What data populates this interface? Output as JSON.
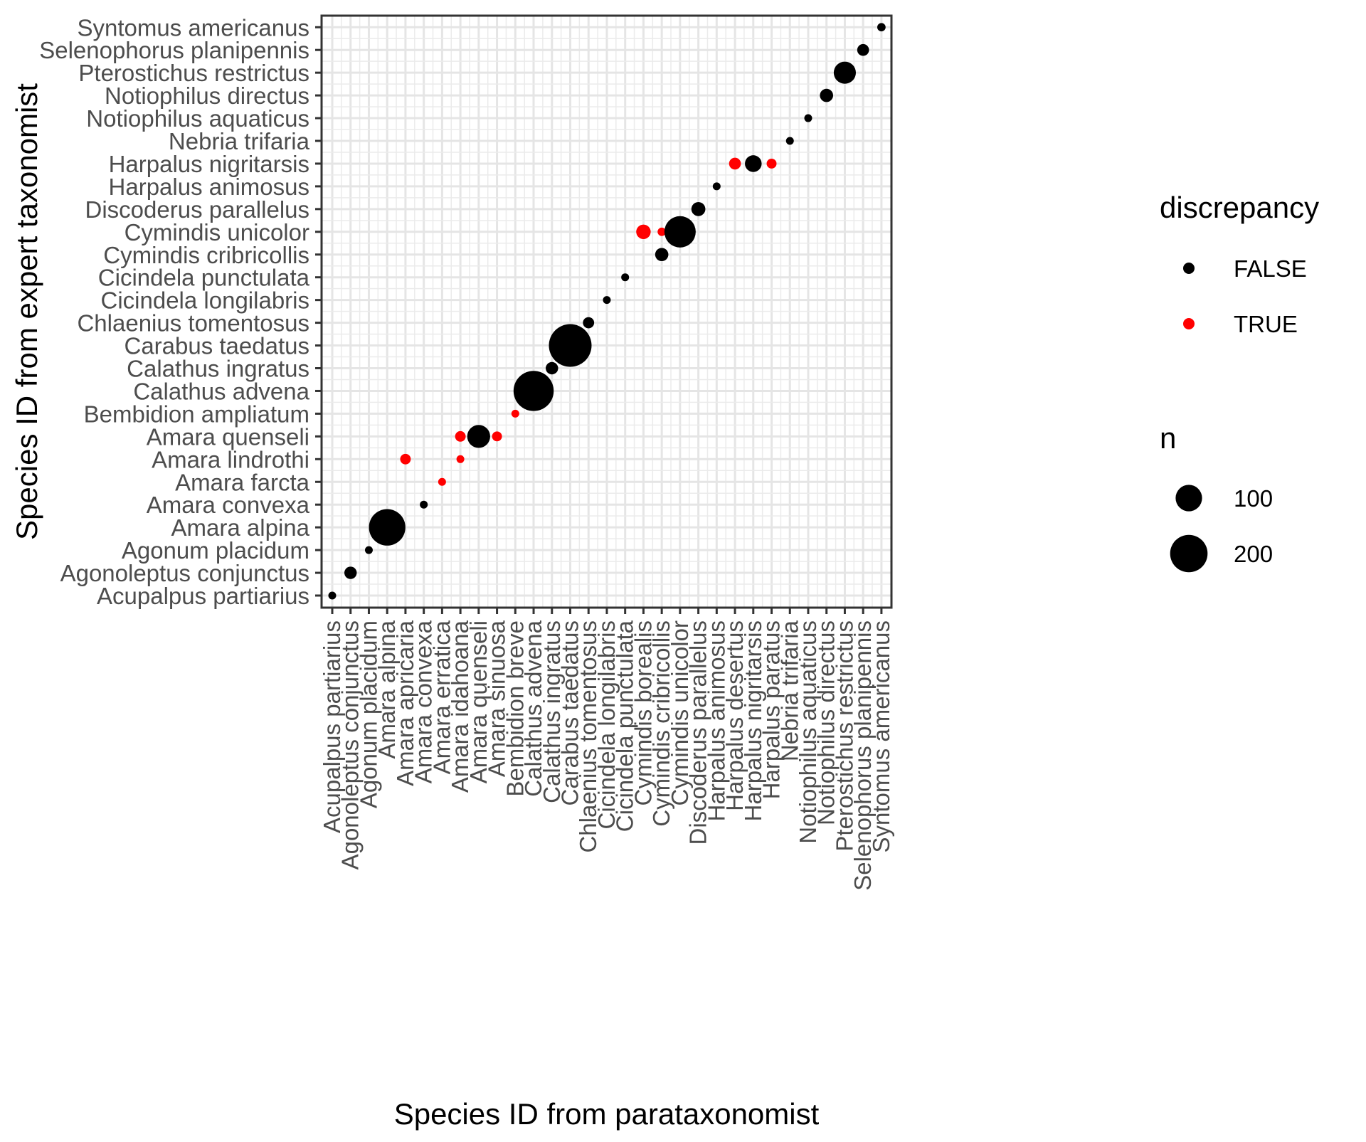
{
  "chart_data": {
    "type": "scatter",
    "xlabel": "Species ID from parataxonomist",
    "ylabel": "Species ID from expert taxonomist",
    "x_categories": [
      "Acupalpus partiarius",
      "Agonoleptus conjunctus",
      "Agonum placidum",
      "Amara alpina",
      "Amara apricaria",
      "Amara convexa",
      "Amara erratica",
      "Amara idahoana",
      "Amara quenseli",
      "Amara sinuosa",
      "Bembidion breve",
      "Calathus advena",
      "Calathus ingratus",
      "Carabus taedatus",
      "Chlaenius tomentosus",
      "Cicindela longilabris",
      "Cicindela punctulata",
      "Cymindis borealis",
      "Cymindis cribricollis",
      "Cymindis unicolor",
      "Discoderus parallelus",
      "Harpalus animosus",
      "Harpalus desertus",
      "Harpalus nigritarsis",
      "Harpalus paratus",
      "Nebria trifaria",
      "Notiophilus aquaticus",
      "Notiophilus directus",
      "Pterostichus restrictus",
      "Selenophorus planipennis",
      "Syntomus americanus"
    ],
    "y_categories": [
      "Acupalpus partiarius",
      "Agonoleptus conjunctus",
      "Agonum placidum",
      "Amara alpina",
      "Amara convexa",
      "Amara farcta",
      "Amara lindrothi",
      "Amara quenseli",
      "Bembidion ampliatum",
      "Calathus advena",
      "Calathus ingratus",
      "Carabus taedatus",
      "Chlaenius tomentosus",
      "Cicindela longilabris",
      "Cicindela punctulata",
      "Cymindis cribricollis",
      "Cymindis unicolor",
      "Discoderus parallelus",
      "Harpalus animosus",
      "Harpalus nigritarsis",
      "Nebria trifaria",
      "Notiophilus aquaticus",
      "Notiophilus directus",
      "Pterostichus restrictus",
      "Selenophorus planipennis",
      "Syntomus americanus"
    ],
    "points": [
      {
        "x": "Acupalpus partiarius",
        "y": "Acupalpus partiarius",
        "n": 8,
        "discrepancy": false
      },
      {
        "x": "Agonoleptus conjunctus",
        "y": "Agonoleptus conjunctus",
        "n": 22,
        "discrepancy": false
      },
      {
        "x": "Agonum placidum",
        "y": "Agonum placidum",
        "n": 8,
        "discrepancy": false
      },
      {
        "x": "Amara alpina",
        "y": "Amara alpina",
        "n": 190,
        "discrepancy": false
      },
      {
        "x": "Amara apricaria",
        "y": "Amara lindrothi",
        "n": 16,
        "discrepancy": true
      },
      {
        "x": "Amara convexa",
        "y": "Amara convexa",
        "n": 8,
        "discrepancy": false
      },
      {
        "x": "Amara erratica",
        "y": "Amara farcta",
        "n": 8,
        "discrepancy": true
      },
      {
        "x": "Amara idahoana",
        "y": "Amara quenseli",
        "n": 16,
        "discrepancy": true
      },
      {
        "x": "Amara idahoana",
        "y": "Amara lindrothi",
        "n": 8,
        "discrepancy": true
      },
      {
        "x": "Amara quenseli",
        "y": "Amara quenseli",
        "n": 75,
        "discrepancy": false
      },
      {
        "x": "Amara sinuosa",
        "y": "Amara quenseli",
        "n": 14,
        "discrepancy": true
      },
      {
        "x": "Bembidion breve",
        "y": "Bembidion ampliatum",
        "n": 8,
        "discrepancy": true
      },
      {
        "x": "Calathus advena",
        "y": "Calathus advena",
        "n": 230,
        "discrepancy": false
      },
      {
        "x": "Calathus ingratus",
        "y": "Calathus ingratus",
        "n": 22,
        "discrepancy": false
      },
      {
        "x": "Carabus taedatus",
        "y": "Carabus taedatus",
        "n": 260,
        "discrepancy": false
      },
      {
        "x": "Chlaenius tomentosus",
        "y": "Chlaenius tomentosus",
        "n": 18,
        "discrepancy": false
      },
      {
        "x": "Cicindela longilabris",
        "y": "Cicindela longilabris",
        "n": 8,
        "discrepancy": false
      },
      {
        "x": "Cicindela punctulata",
        "y": "Cicindela punctulata",
        "n": 8,
        "discrepancy": false
      },
      {
        "x": "Cymindis borealis",
        "y": "Cymindis unicolor",
        "n": 30,
        "discrepancy": true
      },
      {
        "x": "Cymindis cribricollis",
        "y": "Cymindis unicolor",
        "n": 10,
        "discrepancy": true
      },
      {
        "x": "Cymindis cribricollis",
        "y": "Cymindis cribricollis",
        "n": 25,
        "discrepancy": false
      },
      {
        "x": "Cymindis unicolor",
        "y": "Cymindis unicolor",
        "n": 140,
        "discrepancy": false
      },
      {
        "x": "Discoderus parallelus",
        "y": "Discoderus parallelus",
        "n": 28,
        "discrepancy": false
      },
      {
        "x": "Harpalus animosus",
        "y": "Harpalus animosus",
        "n": 8,
        "discrepancy": false
      },
      {
        "x": "Harpalus desertus",
        "y": "Harpalus nigritarsis",
        "n": 20,
        "discrepancy": true
      },
      {
        "x": "Harpalus nigritarsis",
        "y": "Harpalus nigritarsis",
        "n": 40,
        "discrepancy": false
      },
      {
        "x": "Harpalus paratus",
        "y": "Harpalus nigritarsis",
        "n": 14,
        "discrepancy": true
      },
      {
        "x": "Nebria trifaria",
        "y": "Nebria trifaria",
        "n": 8,
        "discrepancy": false
      },
      {
        "x": "Notiophilus aquaticus",
        "y": "Notiophilus aquaticus",
        "n": 8,
        "discrepancy": false
      },
      {
        "x": "Notiophilus directus",
        "y": "Notiophilus directus",
        "n": 25,
        "discrepancy": false
      },
      {
        "x": "Pterostichus restrictus",
        "y": "Pterostichus restrictus",
        "n": 70,
        "discrepancy": false
      },
      {
        "x": "Selenophorus planipennis",
        "y": "Selenophorus planipennis",
        "n": 20,
        "discrepancy": false
      },
      {
        "x": "Syntomus americanus",
        "y": "Syntomus americanus",
        "n": 10,
        "discrepancy": false
      }
    ],
    "legend": {
      "color_title": "discrepancy",
      "color_items": [
        {
          "label": "FALSE",
          "color": "#000000"
        },
        {
          "label": "TRUE",
          "color": "#ff0000"
        }
      ],
      "size_title": "n",
      "size_items": [
        {
          "label": "100",
          "value": 100
        },
        {
          "label": "200",
          "value": 200
        }
      ],
      "placement": "right"
    },
    "grid": true
  }
}
